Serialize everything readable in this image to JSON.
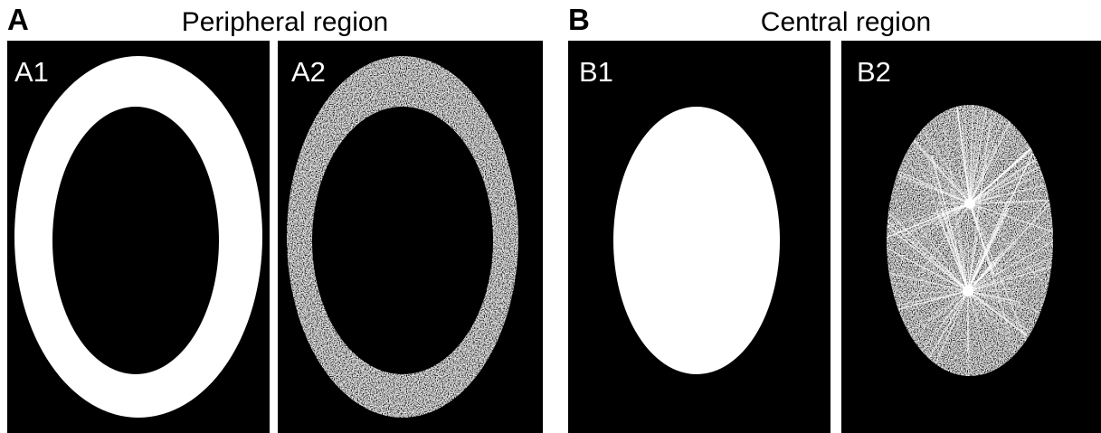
{
  "figure": {
    "panel_a": {
      "letter": "A",
      "title": "Peripheral region",
      "images": [
        "A1",
        "A2"
      ]
    },
    "panel_b": {
      "letter": "B",
      "title": "Central region",
      "images": [
        "B1",
        "B2"
      ]
    }
  }
}
